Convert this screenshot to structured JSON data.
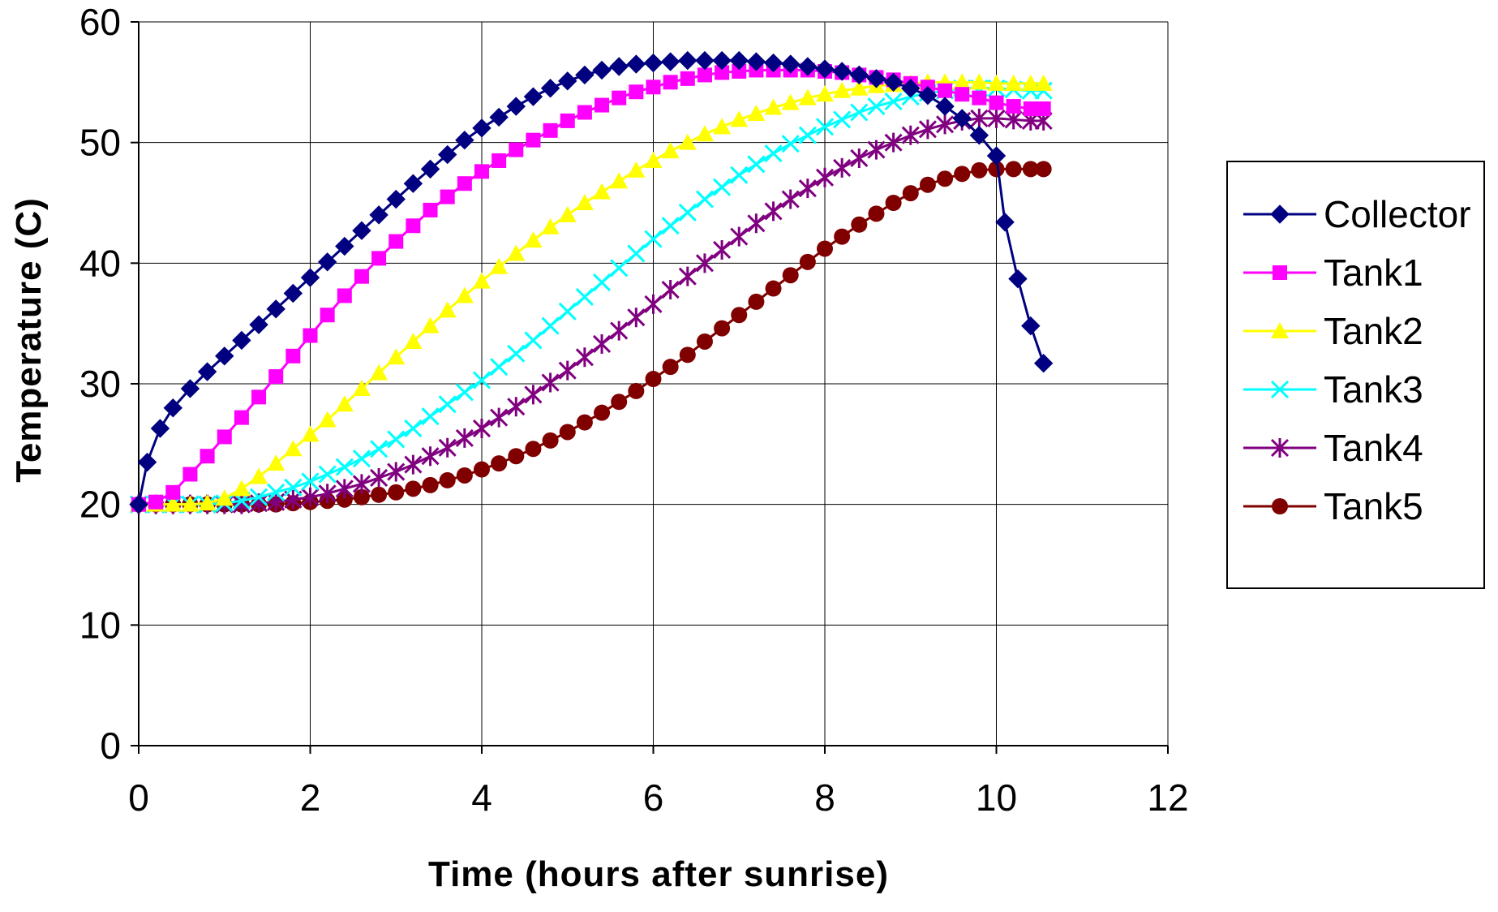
{
  "chart_data": {
    "type": "line",
    "title": "",
    "xlabel": "Time (hours after sunrise)",
    "ylabel": "Temperature (C)",
    "xlim": [
      0,
      12
    ],
    "ylim": [
      0,
      60
    ],
    "x_ticks": [
      0,
      2,
      4,
      6,
      8,
      10,
      12
    ],
    "y_ticks": [
      0,
      10,
      20,
      30,
      40,
      50,
      60
    ],
    "grid": true,
    "legend_position": "right",
    "series": [
      {
        "name": "Collector",
        "color": "#000080",
        "marker": "diamond",
        "x": [
          0,
          0.1,
          0.25,
          0.4,
          0.6,
          0.8,
          1.0,
          1.2,
          1.4,
          1.6,
          1.8,
          2.0,
          2.2,
          2.4,
          2.6,
          2.8,
          3.0,
          3.2,
          3.4,
          3.6,
          3.8,
          4.0,
          4.2,
          4.4,
          4.6,
          4.8,
          5.0,
          5.2,
          5.4,
          5.6,
          5.8,
          6.0,
          6.2,
          6.4,
          6.6,
          6.8,
          7.0,
          7.2,
          7.4,
          7.6,
          7.8,
          8.0,
          8.2,
          8.4,
          8.6,
          8.8,
          9.0,
          9.2,
          9.4,
          9.6,
          9.8,
          10.0,
          10.1,
          10.25,
          10.4,
          10.55
        ],
        "values": [
          20,
          23.5,
          26.3,
          28.0,
          29.6,
          31.0,
          32.3,
          33.6,
          34.9,
          36.2,
          37.5,
          38.8,
          40.1,
          41.4,
          42.7,
          44.0,
          45.3,
          46.6,
          47.8,
          49.0,
          50.2,
          51.2,
          52.1,
          53.0,
          53.8,
          54.5,
          55.1,
          55.6,
          56.0,
          56.3,
          56.5,
          56.6,
          56.7,
          56.8,
          56.8,
          56.8,
          56.8,
          56.7,
          56.6,
          56.5,
          56.3,
          56.1,
          55.9,
          55.6,
          55.3,
          55.0,
          54.5,
          53.9,
          53.0,
          52.0,
          50.6,
          48.9,
          43.4,
          38.7,
          34.8,
          31.7
        ]
      },
      {
        "name": "Tank1",
        "color": "#FF00FF",
        "marker": "square",
        "x": [
          0,
          0.2,
          0.4,
          0.6,
          0.8,
          1.0,
          1.2,
          1.4,
          1.6,
          1.8,
          2.0,
          2.2,
          2.4,
          2.6,
          2.8,
          3.0,
          3.2,
          3.4,
          3.6,
          3.8,
          4.0,
          4.2,
          4.4,
          4.6,
          4.8,
          5.0,
          5.2,
          5.4,
          5.6,
          5.8,
          6.0,
          6.2,
          6.4,
          6.6,
          6.8,
          7.0,
          7.2,
          7.4,
          7.6,
          7.8,
          8.0,
          8.2,
          8.4,
          8.6,
          8.8,
          9.0,
          9.2,
          9.4,
          9.6,
          9.8,
          10.0,
          10.2,
          10.4,
          10.55
        ],
        "values": [
          20,
          20.2,
          21.0,
          22.5,
          24.0,
          25.6,
          27.2,
          28.9,
          30.6,
          32.3,
          34.0,
          35.7,
          37.3,
          38.9,
          40.4,
          41.8,
          43.1,
          44.4,
          45.5,
          46.6,
          47.6,
          48.5,
          49.4,
          50.2,
          51.0,
          51.8,
          52.5,
          53.1,
          53.7,
          54.2,
          54.6,
          55.0,
          55.3,
          55.6,
          55.8,
          55.9,
          56.0,
          56.0,
          56.0,
          56.0,
          55.9,
          55.8,
          55.6,
          55.4,
          55.2,
          54.9,
          54.6,
          54.3,
          54.0,
          53.7,
          53.3,
          53.0,
          52.8,
          52.8
        ]
      },
      {
        "name": "Tank2",
        "color": "#FFFF00",
        "marker": "triangle",
        "x": [
          0,
          0.2,
          0.4,
          0.6,
          0.8,
          1.0,
          1.2,
          1.4,
          1.6,
          1.8,
          2.0,
          2.2,
          2.4,
          2.6,
          2.8,
          3.0,
          3.2,
          3.4,
          3.6,
          3.8,
          4.0,
          4.2,
          4.4,
          4.6,
          4.8,
          5.0,
          5.2,
          5.4,
          5.6,
          5.8,
          6.0,
          6.2,
          6.4,
          6.6,
          6.8,
          7.0,
          7.2,
          7.4,
          7.6,
          7.8,
          8.0,
          8.2,
          8.4,
          8.6,
          8.8,
          9.0,
          9.2,
          9.4,
          9.6,
          9.8,
          10.0,
          10.2,
          10.4,
          10.55
        ],
        "values": [
          20,
          20,
          20,
          20,
          20.1,
          20.5,
          21.3,
          22.3,
          23.4,
          24.6,
          25.8,
          27.0,
          28.3,
          29.6,
          30.9,
          32.2,
          33.5,
          34.8,
          36.1,
          37.3,
          38.5,
          39.7,
          40.8,
          41.9,
          43.0,
          44.0,
          45.0,
          45.9,
          46.8,
          47.7,
          48.5,
          49.3,
          50.0,
          50.7,
          51.3,
          51.9,
          52.4,
          52.9,
          53.3,
          53.7,
          54.0,
          54.3,
          54.5,
          54.7,
          54.8,
          54.9,
          55.0,
          55.0,
          55.0,
          55.0,
          54.9,
          54.9,
          54.9,
          54.9
        ]
      },
      {
        "name": "Tank3",
        "color": "#00FFFF",
        "marker": "x",
        "x": [
          0,
          0.2,
          0.4,
          0.6,
          0.8,
          1.0,
          1.2,
          1.4,
          1.6,
          1.8,
          2.0,
          2.2,
          2.4,
          2.6,
          2.8,
          3.0,
          3.2,
          3.4,
          3.6,
          3.8,
          4.0,
          4.2,
          4.4,
          4.6,
          4.8,
          5.0,
          5.2,
          5.4,
          5.6,
          5.8,
          6.0,
          6.2,
          6.4,
          6.6,
          6.8,
          7.0,
          7.2,
          7.4,
          7.6,
          7.8,
          8.0,
          8.2,
          8.4,
          8.6,
          8.8,
          9.0,
          9.2,
          9.4,
          9.6,
          9.8,
          10.0,
          10.2,
          10.4,
          10.55
        ],
        "values": [
          20,
          20,
          20,
          20,
          20,
          20.1,
          20.3,
          20.6,
          21.0,
          21.4,
          21.9,
          22.5,
          23.1,
          23.8,
          24.6,
          25.4,
          26.3,
          27.3,
          28.3,
          29.3,
          30.3,
          31.4,
          32.5,
          33.6,
          34.8,
          36.0,
          37.2,
          38.4,
          39.6,
          40.8,
          42.0,
          43.1,
          44.2,
          45.3,
          46.3,
          47.3,
          48.2,
          49.1,
          49.9,
          50.6,
          51.3,
          51.9,
          52.5,
          53.0,
          53.4,
          53.8,
          54.1,
          54.3,
          54.5,
          54.5,
          54.5,
          54.4,
          54.3,
          54.3
        ]
      },
      {
        "name": "Tank4",
        "color": "#800080",
        "marker": "star",
        "x": [
          0,
          0.2,
          0.4,
          0.6,
          0.8,
          1.0,
          1.2,
          1.4,
          1.6,
          1.8,
          2.0,
          2.2,
          2.4,
          2.6,
          2.8,
          3.0,
          3.2,
          3.4,
          3.6,
          3.8,
          4.0,
          4.2,
          4.4,
          4.6,
          4.8,
          5.0,
          5.2,
          5.4,
          5.6,
          5.8,
          6.0,
          6.2,
          6.4,
          6.6,
          6.8,
          7.0,
          7.2,
          7.4,
          7.6,
          7.8,
          8.0,
          8.2,
          8.4,
          8.6,
          8.8,
          9.0,
          9.2,
          9.4,
          9.6,
          9.8,
          10.0,
          10.2,
          10.4,
          10.55
        ],
        "values": [
          20,
          20,
          20,
          20,
          20,
          20,
          20,
          20.1,
          20.2,
          20.4,
          20.6,
          20.9,
          21.3,
          21.7,
          22.2,
          22.7,
          23.3,
          24.0,
          24.7,
          25.5,
          26.3,
          27.2,
          28.1,
          29.1,
          30.1,
          31.1,
          32.2,
          33.3,
          34.4,
          35.5,
          36.6,
          37.8,
          38.9,
          40.0,
          41.1,
          42.2,
          43.3,
          44.3,
          45.3,
          46.2,
          47.1,
          47.9,
          48.7,
          49.4,
          50.0,
          50.6,
          51.1,
          51.5,
          51.8,
          52.0,
          52.0,
          51.9,
          51.8,
          51.8
        ]
      },
      {
        "name": "Tank5",
        "color": "#800000",
        "marker": "circle",
        "x": [
          0,
          0.2,
          0.4,
          0.6,
          0.8,
          1.0,
          1.2,
          1.4,
          1.6,
          1.8,
          2.0,
          2.2,
          2.4,
          2.6,
          2.8,
          3.0,
          3.2,
          3.4,
          3.6,
          3.8,
          4.0,
          4.2,
          4.4,
          4.6,
          4.8,
          5.0,
          5.2,
          5.4,
          5.6,
          5.8,
          6.0,
          6.2,
          6.4,
          6.6,
          6.8,
          7.0,
          7.2,
          7.4,
          7.6,
          7.8,
          8.0,
          8.2,
          8.4,
          8.6,
          8.8,
          9.0,
          9.2,
          9.4,
          9.6,
          9.8,
          10.0,
          10.2,
          10.4,
          10.55
        ],
        "values": [
          20,
          20,
          20,
          20,
          20,
          20,
          20,
          20,
          20,
          20.1,
          20.2,
          20.3,
          20.4,
          20.6,
          20.8,
          21.0,
          21.3,
          21.6,
          22.0,
          22.4,
          22.9,
          23.4,
          24.0,
          24.6,
          25.3,
          26.0,
          26.8,
          27.6,
          28.5,
          29.4,
          30.4,
          31.4,
          32.4,
          33.5,
          34.6,
          35.7,
          36.8,
          37.9,
          39.0,
          40.1,
          41.2,
          42.2,
          43.2,
          44.1,
          45.0,
          45.8,
          46.5,
          47.0,
          47.4,
          47.7,
          47.8,
          47.8,
          47.8,
          47.8
        ]
      }
    ]
  }
}
